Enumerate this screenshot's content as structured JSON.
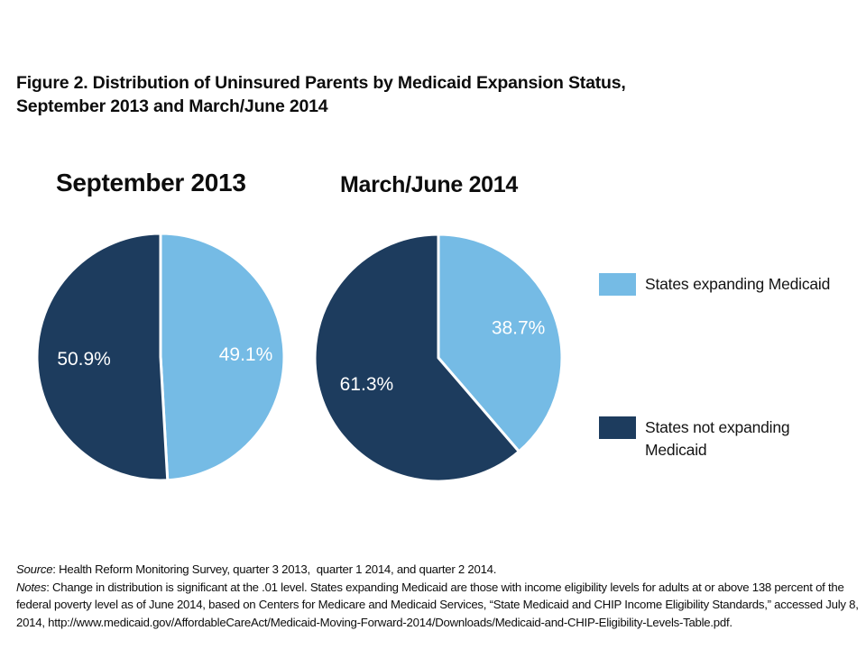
{
  "page": {
    "background": "#FFFFFF"
  },
  "header": {
    "title_line1": "Figure 2. Distribution of Uninsured Parents by Medicaid Expansion Status,",
    "title_line2": "September 2013 and March/June 2014"
  },
  "colors": {
    "expanding_blue": "#75BBE5",
    "not_expanding_navy": "#1D3C5E",
    "slice_divider": "#FFFFFF",
    "slice_label": "#FFFFFF"
  },
  "chart_data": [
    {
      "type": "pie",
      "title": "September 2013",
      "categories": [
        "States expanding Medicaid",
        "States not expanding Medicaid"
      ],
      "values": [
        49.1,
        50.9
      ],
      "labels": [
        "49.1%",
        "50.9%"
      ],
      "colors": [
        "#75BBE5",
        "#1D3C5E"
      ],
      "label_color": "#FFFFFF",
      "start_angle": "12-o-clock",
      "direction": "clockwise",
      "labels_inside": true
    },
    {
      "type": "pie",
      "title": "March/June 2014",
      "categories": [
        "States expanding Medicaid",
        "States not expanding Medicaid"
      ],
      "values": [
        38.7,
        61.3
      ],
      "labels": [
        "38.7%",
        "61.3%"
      ],
      "colors": [
        "#75BBE5",
        "#1D3C5E"
      ],
      "label_color": "#FFFFFF",
      "start_angle": "12-o-clock",
      "direction": "clockwise",
      "labels_inside": true
    }
  ],
  "legend": {
    "position": "right",
    "items": [
      {
        "label": "States expanding Medicaid",
        "color": "#75BBE5"
      },
      {
        "label": "States not expanding Medicaid",
        "color": "#1D3C5E"
      }
    ]
  },
  "footnotes": {
    "source_label": "Source",
    "source_rest": ": Health Reform Monitoring Survey, quarter 3 2013,  quarter 1 2014, and quarter 2 2014.",
    "notes_label": "Notes",
    "notes_rest": ": Change in distribution is significant at the .01 level. States expanding Medicaid are those with income eligibility levels for adults at or above 138 percent of the federal poverty level as of June 2014, based on Centers for Medicare and Medicaid Services, “State Medicaid and CHIP Income Eligibility Standards,” accessed July 8, 2014, http://www.medicaid.gov/AffordableCareAct/Medicaid-Moving-Forward-2014/Downloads/Medicaid-and-CHIP-Eligibility-Levels-Table.pdf."
  }
}
